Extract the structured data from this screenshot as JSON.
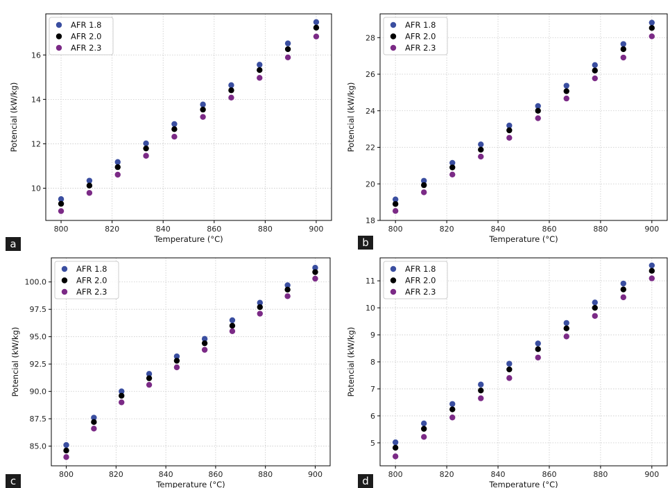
{
  "panel_labels": [
    "a",
    "b",
    "c",
    "d"
  ],
  "chart_data": [
    {
      "type": "scatter",
      "xlabel": "Temperature (°C)",
      "ylabel": "Potencial (kW/kg)",
      "xlim": [
        794,
        906
      ],
      "ylim": [
        8.55,
        17.85
      ],
      "xticks": [
        800,
        820,
        840,
        860,
        880,
        900
      ],
      "yticks": [
        10,
        12,
        14,
        16
      ],
      "grid": true,
      "legend_position": "top-left",
      "x": [
        800,
        811.1,
        822.2,
        833.3,
        844.4,
        855.6,
        866.7,
        877.8,
        888.9,
        900
      ],
      "series": [
        {
          "name": "AFR 1.8",
          "color": "#3a4ea0",
          "values": [
            9.51,
            10.34,
            11.18,
            12.02,
            12.89,
            13.77,
            14.64,
            15.56,
            16.52,
            17.48
          ]
        },
        {
          "name": "AFR 2.0",
          "color": "#000000",
          "values": [
            9.3,
            10.12,
            10.95,
            11.79,
            12.66,
            13.54,
            14.41,
            15.32,
            16.26,
            17.23
          ]
        },
        {
          "name": "AFR 2.3",
          "color": "#7b2a86",
          "values": [
            8.97,
            9.79,
            10.61,
            11.46,
            12.32,
            13.21,
            14.08,
            14.97,
            15.89,
            16.83
          ]
        }
      ]
    },
    {
      "type": "scatter",
      "xlabel": "Temperature (°C)",
      "ylabel": "Potencial (kW/kg)",
      "xlim": [
        794,
        906
      ],
      "ylim": [
        18.0,
        29.3
      ],
      "xticks": [
        800,
        820,
        840,
        860,
        880,
        900
      ],
      "yticks": [
        18,
        20,
        22,
        24,
        26,
        28
      ],
      "grid": true,
      "legend_position": "top-left",
      "x": [
        800,
        811.1,
        822.2,
        833.3,
        844.4,
        855.6,
        866.7,
        877.8,
        888.9,
        900
      ],
      "series": [
        {
          "name": "AFR 1.8",
          "color": "#3a4ea0",
          "values": [
            19.15,
            20.17,
            21.15,
            22.16,
            23.19,
            24.26,
            25.37,
            26.5,
            27.65,
            28.82
          ]
        },
        {
          "name": "AFR 2.0",
          "color": "#000000",
          "values": [
            18.9,
            19.93,
            20.9,
            21.87,
            22.93,
            24.0,
            25.07,
            26.2,
            27.37,
            28.53
          ]
        },
        {
          "name": "AFR 2.3",
          "color": "#7b2a86",
          "values": [
            18.52,
            19.54,
            20.51,
            21.49,
            22.52,
            23.59,
            24.67,
            25.77,
            26.91,
            28.07
          ]
        }
      ]
    },
    {
      "type": "scatter",
      "xlabel": "Temperature (°C)",
      "ylabel": "Potencial (kW/kg)",
      "xlim": [
        794,
        906
      ],
      "ylim": [
        83.2,
        102.2
      ],
      "xticks": [
        800,
        820,
        840,
        860,
        880,
        900
      ],
      "yticks": [
        85.0,
        87.5,
        90.0,
        92.5,
        95.0,
        97.5,
        100.0
      ],
      "ytick_labels": [
        "85.0",
        "87.5",
        "90.0",
        "92.5",
        "95.0",
        "97.5",
        "100.0"
      ],
      "grid": true,
      "legend_position": "top-left",
      "x": [
        800,
        811.1,
        822.2,
        833.3,
        844.4,
        855.6,
        866.7,
        877.8,
        888.9,
        900
      ],
      "series": [
        {
          "name": "AFR 1.8",
          "color": "#3a4ea0",
          "values": [
            85.1,
            87.6,
            90.0,
            91.6,
            93.2,
            94.8,
            96.5,
            98.1,
            99.7,
            101.3
          ]
        },
        {
          "name": "AFR 2.0",
          "color": "#000000",
          "values": [
            84.6,
            87.2,
            89.6,
            91.2,
            92.8,
            94.4,
            96.0,
            97.7,
            99.3,
            100.9
          ]
        },
        {
          "name": "AFR 2.3",
          "color": "#7b2a86",
          "values": [
            84.0,
            86.6,
            89.0,
            90.6,
            92.2,
            93.8,
            95.5,
            97.1,
            98.7,
            100.3
          ]
        }
      ]
    },
    {
      "type": "scatter",
      "xlabel": "Temperature (°C)",
      "ylabel": "Potencial (kW/kg)",
      "xlim": [
        794,
        906
      ],
      "ylim": [
        4.15,
        11.85
      ],
      "xticks": [
        800,
        820,
        840,
        860,
        880,
        900
      ],
      "yticks": [
        5,
        6,
        7,
        8,
        9,
        10,
        11
      ],
      "grid": true,
      "legend_position": "top-left",
      "x": [
        800,
        811.1,
        822.2,
        833.3,
        844.4,
        855.6,
        866.7,
        877.8,
        888.9,
        900
      ],
      "series": [
        {
          "name": "AFR 1.8",
          "color": "#3a4ea0",
          "values": [
            5.02,
            5.72,
            6.44,
            7.16,
            7.93,
            8.68,
            9.44,
            10.2,
            10.9,
            11.57
          ]
        },
        {
          "name": "AFR 2.0",
          "color": "#000000",
          "values": [
            4.82,
            5.52,
            6.24,
            6.94,
            7.72,
            8.47,
            9.24,
            10.0,
            10.68,
            11.37
          ]
        },
        {
          "name": "AFR 2.3",
          "color": "#7b2a86",
          "values": [
            4.5,
            5.22,
            5.94,
            6.65,
            7.4,
            8.16,
            8.94,
            9.7,
            10.39,
            11.09
          ]
        }
      ]
    }
  ]
}
